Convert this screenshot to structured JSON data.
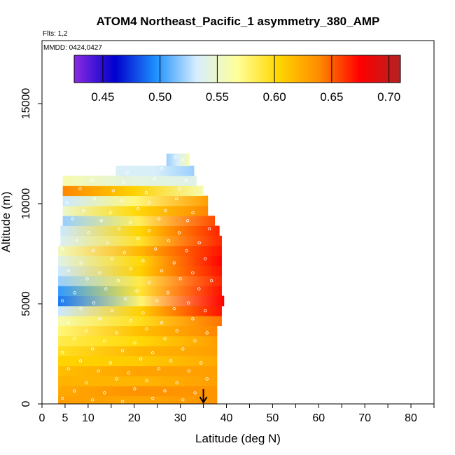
{
  "chart_data": {
    "type": "heatmap",
    "title": "ATOM4 Northeast_Pacific_1 asymmetry_380_AMP",
    "flights_note": "Flts: 1,2",
    "date_note": "MMDD: 0424,0427",
    "xlabel": "Latitude (deg N)",
    "ylabel": "Altitude (m)",
    "xlim": [
      0,
      85
    ],
    "ylim": [
      0,
      18000
    ],
    "x_tick_labels": [
      "0",
      "5",
      "10",
      "20",
      "30",
      "40",
      "50",
      "60",
      "70",
      "80"
    ],
    "x_tick_values": [
      0,
      5,
      10,
      20,
      30,
      40,
      50,
      60,
      70,
      80
    ],
    "y_tick_labels": [
      "0",
      "5000",
      "10000",
      "15000"
    ],
    "y_tick_values": [
      0,
      5000,
      10000,
      15000
    ],
    "colorbar": {
      "range": [
        0.425,
        0.71
      ],
      "tick_labels": [
        "0.45",
        "0.50",
        "0.55",
        "0.60",
        "0.65",
        "0.70"
      ],
      "tick_values": [
        0.45,
        0.5,
        0.55,
        0.6,
        0.65,
        0.7
      ],
      "colors": [
        "#8a2be2",
        "#0000cc",
        "#1e90ff",
        "#d6eeff",
        "#ffff99",
        "#ffd700",
        "#ff8c00",
        "#ff0000",
        "#b22222"
      ]
    },
    "marker_latitude": 35,
    "grid": false,
    "layers": [
      {
        "alt_min": 0,
        "alt_max": 400,
        "lat_min": 3.5,
        "lat_max": 38,
        "value_start": 0.63,
        "value_end": 0.635
      },
      {
        "alt_min": 400,
        "alt_max": 900,
        "lat_min": 3.5,
        "lat_max": 38,
        "value_start": 0.625,
        "value_end": 0.635
      },
      {
        "alt_min": 900,
        "alt_max": 1400,
        "lat_min": 3.5,
        "lat_max": 38,
        "value_start": 0.62,
        "value_end": 0.63
      },
      {
        "alt_min": 1400,
        "alt_max": 1900,
        "lat_min": 3.5,
        "lat_max": 38,
        "value_start": 0.615,
        "value_end": 0.63
      },
      {
        "alt_min": 1900,
        "alt_max": 2400,
        "lat_min": 3.5,
        "lat_max": 38,
        "value_start": 0.605,
        "value_end": 0.625
      },
      {
        "alt_min": 2400,
        "alt_max": 2900,
        "lat_min": 3.5,
        "lat_max": 38,
        "value_start": 0.595,
        "value_end": 0.63
      },
      {
        "alt_min": 2900,
        "alt_max": 3400,
        "lat_min": 3.5,
        "lat_max": 38,
        "value_start": 0.585,
        "value_end": 0.63
      },
      {
        "alt_min": 3400,
        "alt_max": 3900,
        "lat_min": 3.5,
        "lat_max": 38,
        "value_start": 0.575,
        "value_end": 0.64
      },
      {
        "alt_min": 3900,
        "alt_max": 4400,
        "lat_min": 3.5,
        "lat_max": 39,
        "value_start": 0.56,
        "value_end": 0.645
      },
      {
        "alt_min": 4400,
        "alt_max": 4900,
        "lat_min": 3.5,
        "lat_max": 39,
        "value_start": 0.53,
        "value_end": 0.67
      },
      {
        "alt_min": 4900,
        "alt_max": 5400,
        "lat_min": 3.5,
        "lat_max": 39.5,
        "value_start": 0.49,
        "value_end": 0.675
      },
      {
        "alt_min": 5400,
        "alt_max": 5900,
        "lat_min": 3.5,
        "lat_max": 39,
        "value_start": 0.5,
        "value_end": 0.67
      },
      {
        "alt_min": 5900,
        "alt_max": 6400,
        "lat_min": 3.5,
        "lat_max": 39,
        "value_start": 0.52,
        "value_end": 0.665
      },
      {
        "alt_min": 6400,
        "alt_max": 6900,
        "lat_min": 3.5,
        "lat_max": 39,
        "value_start": 0.53,
        "value_end": 0.67
      },
      {
        "alt_min": 6900,
        "alt_max": 7400,
        "lat_min": 3.5,
        "lat_max": 39,
        "value_start": 0.54,
        "value_end": 0.675
      },
      {
        "alt_min": 7400,
        "alt_max": 7900,
        "lat_min": 3.5,
        "lat_max": 39,
        "value_start": 0.555,
        "value_end": 0.67
      },
      {
        "alt_min": 7900,
        "alt_max": 8400,
        "lat_min": 4,
        "lat_max": 39,
        "value_start": 0.535,
        "value_end": 0.665
      },
      {
        "alt_min": 8400,
        "alt_max": 8900,
        "lat_min": 4,
        "lat_max": 38.5,
        "value_start": 0.53,
        "value_end": 0.665
      },
      {
        "alt_min": 8900,
        "alt_max": 9400,
        "lat_min": 4.5,
        "lat_max": 37.5,
        "value_start": 0.52,
        "value_end": 0.655
      },
      {
        "alt_min": 9400,
        "alt_max": 9900,
        "lat_min": 4.5,
        "lat_max": 36,
        "value_start": 0.55,
        "value_end": 0.64
      },
      {
        "alt_min": 9900,
        "alt_max": 10400,
        "lat_min": 4.5,
        "lat_max": 36,
        "value_start": 0.53,
        "value_end": 0.63
      },
      {
        "alt_min": 10400,
        "alt_max": 10900,
        "lat_min": 4.5,
        "lat_max": 35,
        "value_start": 0.64,
        "value_end": 0.56
      },
      {
        "alt_min": 10900,
        "alt_max": 11400,
        "lat_min": 4.5,
        "lat_max": 33.5,
        "value_start": 0.56,
        "value_end": 0.54
      },
      {
        "alt_min": 11400,
        "alt_max": 11900,
        "lat_min": 16,
        "lat_max": 33,
        "value_start": 0.535,
        "value_end": 0.52
      },
      {
        "alt_min": 11900,
        "alt_max": 12500,
        "lat_min": 27,
        "lat_max": 32,
        "value_start": 0.52,
        "value_end": 0.56
      }
    ]
  }
}
